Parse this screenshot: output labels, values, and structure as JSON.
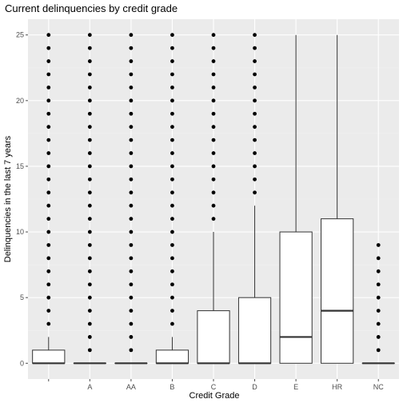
{
  "chart_data": {
    "type": "boxplot",
    "title": "Current delinquencies by credit grade",
    "xlabel": "Credit Grade",
    "ylabel": "Delinquencies in the last 7 years",
    "ylim": [
      -1.2,
      26.2
    ],
    "yticks": [
      0,
      5,
      10,
      15,
      20,
      25
    ],
    "grid": true,
    "categories": [
      "",
      "A",
      "AA",
      "B",
      "C",
      "D",
      "E",
      "HR",
      "NC"
    ],
    "boxes": [
      {
        "q1": 0,
        "median": 0,
        "q3": 1,
        "whisker_low": 0,
        "whisker_high": 2,
        "outliers": [
          3,
          4,
          5,
          6,
          7,
          8,
          9,
          10,
          11,
          12,
          13,
          14,
          15,
          16,
          17,
          18,
          19,
          20,
          21,
          22,
          23,
          24,
          25
        ]
      },
      {
        "q1": 0,
        "median": 0,
        "q3": 0,
        "whisker_low": 0,
        "whisker_high": 0,
        "outliers": [
          1,
          2,
          3,
          4,
          5,
          6,
          7,
          8,
          9,
          10,
          11,
          12,
          13,
          14,
          15,
          16,
          17,
          18,
          19,
          20,
          21,
          22,
          23,
          24,
          25
        ]
      },
      {
        "q1": 0,
        "median": 0,
        "q3": 0,
        "whisker_low": 0,
        "whisker_high": 0,
        "outliers": [
          1,
          2,
          3,
          4,
          5,
          6,
          7,
          8,
          9,
          10,
          11,
          12,
          13,
          14,
          15,
          16,
          17,
          18,
          19,
          20,
          21,
          22,
          23,
          24,
          25
        ]
      },
      {
        "q1": 0,
        "median": 0,
        "q3": 1,
        "whisker_low": 0,
        "whisker_high": 2,
        "outliers": [
          3,
          4,
          5,
          6,
          7,
          8,
          9,
          10,
          11,
          12,
          13,
          14,
          15,
          16,
          17,
          18,
          19,
          20,
          21,
          22,
          23,
          24,
          25
        ]
      },
      {
        "q1": 0,
        "median": 0,
        "q3": 4,
        "whisker_low": 0,
        "whisker_high": 10,
        "outliers": [
          11,
          12,
          13,
          14,
          15,
          16,
          17,
          18,
          19,
          20,
          21,
          22,
          23,
          24,
          25
        ]
      },
      {
        "q1": 0,
        "median": 0,
        "q3": 5,
        "whisker_low": 0,
        "whisker_high": 12,
        "outliers": [
          13,
          14,
          15,
          16,
          17,
          18,
          19,
          20,
          21,
          22,
          23,
          24,
          25
        ]
      },
      {
        "q1": 0,
        "median": 2,
        "q3": 10,
        "whisker_low": 0,
        "whisker_high": 25,
        "outliers": []
      },
      {
        "q1": 0,
        "median": 4,
        "q3": 11,
        "whisker_low": 0,
        "whisker_high": 25,
        "outliers": []
      },
      {
        "q1": 0,
        "median": 0,
        "q3": 0,
        "whisker_low": 0,
        "whisker_high": 0,
        "outliers": [
          1,
          2,
          3,
          4,
          5,
          6,
          7,
          8,
          9
        ]
      }
    ],
    "colors": {
      "panel": "#ebebeb",
      "grid_major": "#ffffff",
      "grid_minor": "#f2f2f2",
      "box_fill": "#ffffff",
      "box_line": "#333333",
      "outlier": "#000000",
      "tick": "#4d4d4d"
    }
  }
}
